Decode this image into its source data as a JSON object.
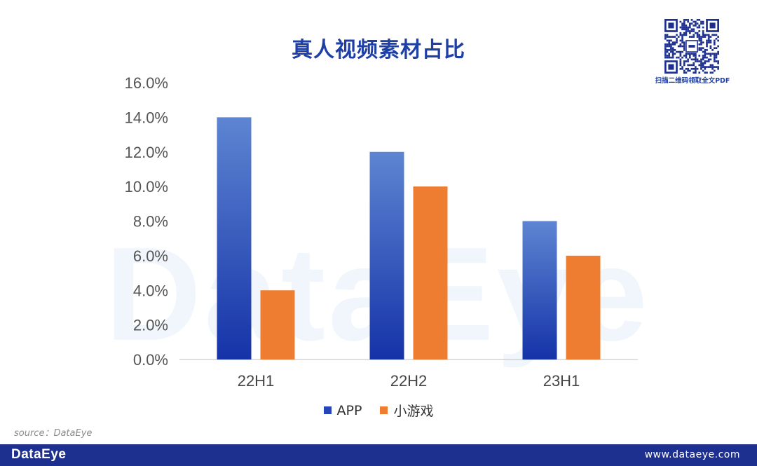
{
  "header": {
    "title": "真人视频素材占比"
  },
  "watermark": "DataEye",
  "qr": {
    "caption": "扫描二维码领取全文PDF"
  },
  "source": "source：DataEye",
  "footer": {
    "logo": "DataEye",
    "url": "www.dataeye.com"
  },
  "colors": {
    "app": "#2745b8",
    "mini_game": "#ee7d31",
    "brand": "#1d2f8f"
  },
  "chart_data": {
    "type": "bar",
    "categories": [
      "22H1",
      "22H2",
      "23H1"
    ],
    "series": [
      {
        "name": "APP",
        "values": [
          0.14,
          0.12,
          0.08
        ]
      },
      {
        "name": "小游戏",
        "values": [
          0.04,
          0.1,
          0.06
        ]
      }
    ],
    "ylim": [
      0,
      0.16
    ],
    "yticks": [
      "0.0%",
      "2.0%",
      "4.0%",
      "6.0%",
      "8.0%",
      "10.0%",
      "12.0%",
      "14.0%",
      "16.0%"
    ],
    "title": "真人视频素材占比",
    "legend_position": "bottom",
    "grid": false
  }
}
